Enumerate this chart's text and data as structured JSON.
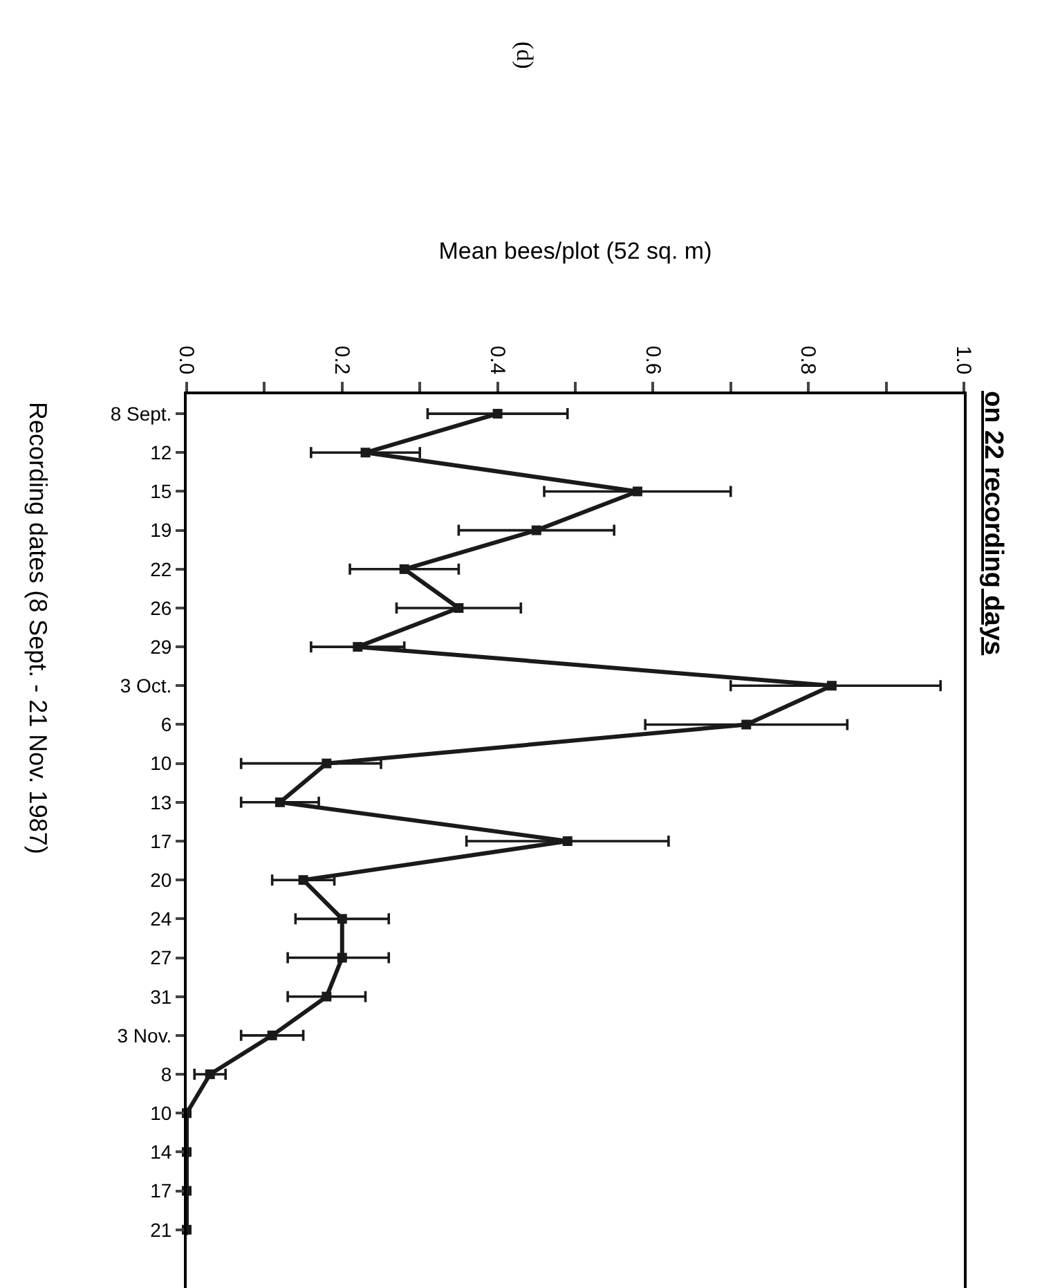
{
  "chart_data": {
    "type": "line",
    "orientation": "horizontal",
    "title": "on 22 recording days",
    "subtitle": "(d)",
    "xlabel": "Mean bees/plot (52 sq. m)",
    "ylabel": "Recording dates (8 Sept. - 21 Nov. 1987)",
    "categories": [
      "8 Sept.",
      "12",
      "15",
      "19",
      "22",
      "26",
      "29",
      "3 Oct.",
      "6",
      "10",
      "13",
      "17",
      "20",
      "24",
      "27",
      "31",
      "3 Nov.",
      "8",
      "10",
      "14",
      "17",
      "21"
    ],
    "series": [
      {
        "color": "#1a1a1a",
        "values": [
          0.4,
          0.23,
          0.58,
          0.45,
          0.28,
          0.35,
          0.22,
          0.83,
          0.72,
          0.18,
          0.12,
          0.49,
          0.15,
          0.2,
          0.2,
          0.18,
          0.11,
          0.03,
          0,
          0,
          0,
          0
        ],
        "errors": [
          [
            0.31,
            0.49
          ],
          [
            0.16,
            0.3
          ],
          [
            0.46,
            0.7
          ],
          [
            0.35,
            0.55
          ],
          [
            0.21,
            0.35
          ],
          [
            0.27,
            0.43
          ],
          [
            0.16,
            0.28
          ],
          [
            0.7,
            0.97
          ],
          [
            0.59,
            0.85
          ],
          [
            0.07,
            0.25
          ],
          [
            0.07,
            0.17
          ],
          [
            0.36,
            0.62
          ],
          [
            0.11,
            0.19
          ],
          [
            0.14,
            0.26
          ],
          [
            0.13,
            0.26
          ],
          [
            0.13,
            0.23
          ],
          [
            0.07,
            0.15
          ],
          [
            0.01,
            0.05
          ],
          null,
          null,
          null,
          null
        ]
      }
    ],
    "xlim": [
      0,
      1.0
    ],
    "xticks": [
      {
        "value": 0,
        "label": "0.0"
      },
      {
        "value": 0.1,
        "label": null
      },
      {
        "value": 0.2,
        "label": "0.2"
      },
      {
        "value": 0.3,
        "label": null
      },
      {
        "value": 0.4,
        "label": "0.4"
      },
      {
        "value": 0.5,
        "label": null
      },
      {
        "value": 0.6,
        "label": "0.6"
      },
      {
        "value": 0.7,
        "label": null
      },
      {
        "value": 0.8,
        "label": "0.8"
      },
      {
        "value": 0.9,
        "label": null
      },
      {
        "value": 1.0,
        "label": "1.0"
      }
    ],
    "marker": "square",
    "line_style": "solid"
  }
}
